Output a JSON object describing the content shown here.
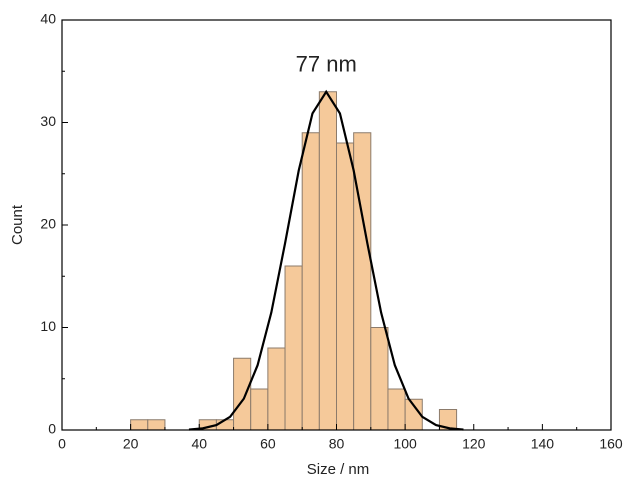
{
  "chart_data": {
    "type": "histogram",
    "xlabel": "Size / nm",
    "ylabel": "Count",
    "annotation": "77 nm",
    "bins": [
      20,
      25,
      30,
      35,
      40,
      45,
      50,
      55,
      60,
      65,
      70,
      75,
      80,
      85,
      90,
      95,
      100,
      105,
      110,
      115
    ],
    "values": [
      1,
      1,
      0,
      0,
      1,
      1,
      7,
      4,
      8,
      16,
      29,
      33,
      28,
      29,
      10,
      4,
      3,
      0,
      2
    ],
    "color": "#f5c99a",
    "fit": {
      "type": "line",
      "color": "#000000",
      "x": [
        37,
        41,
        45,
        49,
        53,
        57,
        61,
        65,
        69,
        73,
        77,
        81,
        85,
        89,
        93,
        97,
        101,
        105,
        109,
        113,
        117
      ],
      "values": [
        0.04,
        0.16,
        0.48,
        1.29,
        3.06,
        6.32,
        11.46,
        18.2,
        25.33,
        30.89,
        33,
        30.89,
        25.33,
        18.2,
        11.46,
        6.32,
        3.06,
        1.29,
        0.48,
        0.16,
        0.04
      ]
    },
    "xlim": [
      0,
      160
    ],
    "xticks": [
      0,
      20,
      40,
      60,
      80,
      100,
      120,
      140,
      160
    ],
    "ylim": [
      0,
      40
    ],
    "yticks": [
      0,
      10,
      20,
      30,
      40
    ]
  }
}
